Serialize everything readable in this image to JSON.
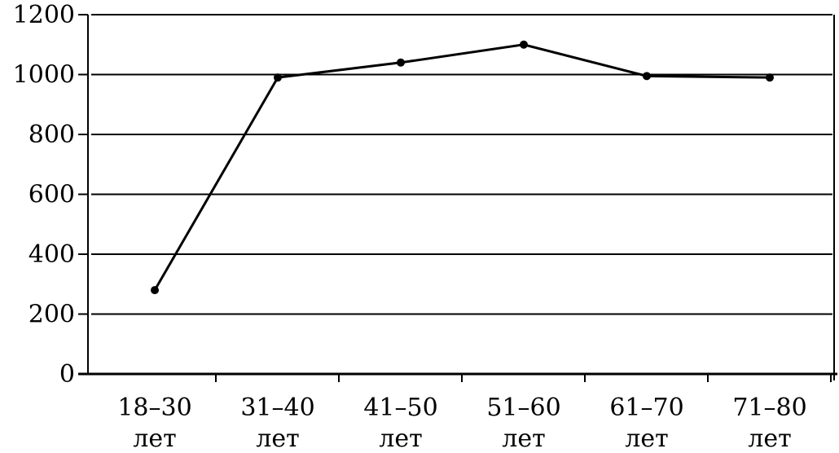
{
  "chart_data": {
    "type": "line",
    "title": "",
    "xlabel": "",
    "ylabel": "",
    "categories": [
      {
        "range": "18–30",
        "unit": "лет"
      },
      {
        "range": "31–40",
        "unit": "лет"
      },
      {
        "range": "41–50",
        "unit": "лет"
      },
      {
        "range": "51–60",
        "unit": "лет"
      },
      {
        "range": "61–70",
        "unit": "лет"
      },
      {
        "range": "71–80",
        "unit": "лет"
      }
    ],
    "values": [
      280,
      990,
      1040,
      1100,
      995,
      990
    ],
    "ylim": [
      0,
      1200
    ],
    "yticks": [
      "0",
      "200",
      "400",
      "600",
      "800",
      "1000",
      "1200"
    ],
    "grid": true,
    "line_color": "#000000",
    "marker": "dot"
  }
}
